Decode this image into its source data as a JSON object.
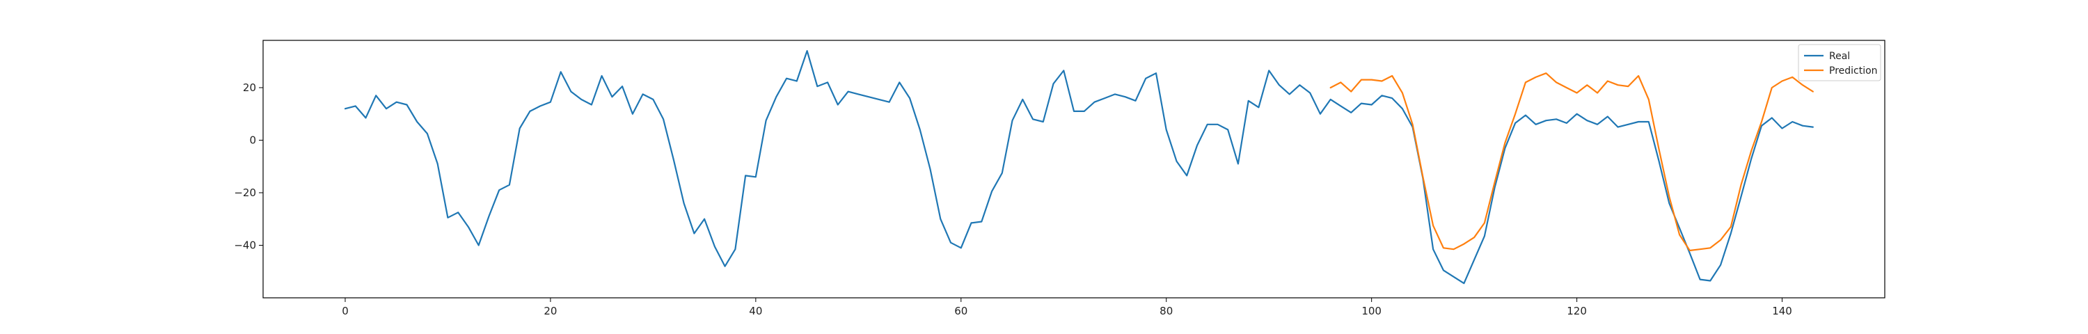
{
  "chart_data": {
    "type": "line",
    "title": "",
    "xlabel": "",
    "ylabel": "",
    "xlim": [
      -8,
      150
    ],
    "ylim": [
      -60,
      38
    ],
    "xticks": [
      0,
      20,
      40,
      60,
      80,
      100,
      120,
      140
    ],
    "yticks": [
      -40,
      -20,
      0,
      20
    ],
    "grid": false,
    "legend_position": "top-right",
    "series": [
      {
        "name": "Real",
        "color": "#1f77b4",
        "x_start": 0,
        "values": [
          12,
          13,
          8.5,
          17,
          12,
          14.5,
          13.5,
          7,
          2.5,
          -9,
          -29.5,
          -27.5,
          -33,
          -40,
          -29,
          -19,
          -17,
          4.5,
          11,
          13,
          14.5,
          26,
          18.5,
          15.5,
          13.5,
          24.5,
          16.5,
          20.5,
          10,
          17.5,
          15.5,
          8,
          -7.5,
          -24,
          -35.5,
          -30,
          -40.5,
          -48,
          -41.5,
          -13.5,
          -14,
          7.5,
          16.5,
          23.5,
          22.5,
          34,
          20.5,
          22,
          13.5,
          18.5,
          17.5,
          16.5,
          15.5,
          14.5,
          22,
          16,
          4,
          -11,
          -30,
          -39,
          -41,
          -31.5,
          -31,
          -19.5,
          -12.5,
          7.5,
          15.5,
          8,
          7,
          21.5,
          26.5,
          11,
          11,
          14.5,
          16,
          17.5,
          16.5,
          15,
          23.5,
          25.5,
          4,
          -8,
          -13.5,
          -2,
          6,
          6,
          4,
          -9,
          15,
          12.5,
          26.5,
          21,
          17.5,
          21,
          18,
          10,
          15.5,
          13,
          10.5,
          14,
          13.5,
          17,
          16,
          12,
          5,
          -14.5,
          -41.5,
          -49.5,
          -52,
          -54.5,
          -45.5,
          -36.5,
          -18,
          -3,
          6.5,
          9.5,
          6,
          7.5,
          8,
          6.5,
          10,
          7.5,
          6,
          9,
          5,
          6,
          7,
          7,
          -8,
          -24,
          -33.5,
          -43,
          -53,
          -53.5,
          -47.5,
          -35.5,
          -21.5,
          -7,
          5.5,
          8.5,
          4.5,
          7,
          5.5,
          5
        ]
      },
      {
        "name": "Prediction",
        "color": "#ff7f0e",
        "x_start": 96,
        "values": [
          20,
          22,
          18.5,
          23,
          23,
          22.5,
          24.5,
          18,
          6,
          -14,
          -32.5,
          -41,
          -41.5,
          -39.5,
          -37,
          -31.5,
          -16,
          -1,
          10,
          22,
          24,
          25.5,
          22,
          20,
          18,
          21,
          18,
          22.5,
          21,
          20.5,
          24.5,
          15.5,
          -3.5,
          -21.5,
          -36,
          -42,
          -41.5,
          -41,
          -38,
          -33,
          -17,
          -4,
          7,
          20,
          22.5,
          24,
          21,
          18.5
        ]
      }
    ]
  }
}
